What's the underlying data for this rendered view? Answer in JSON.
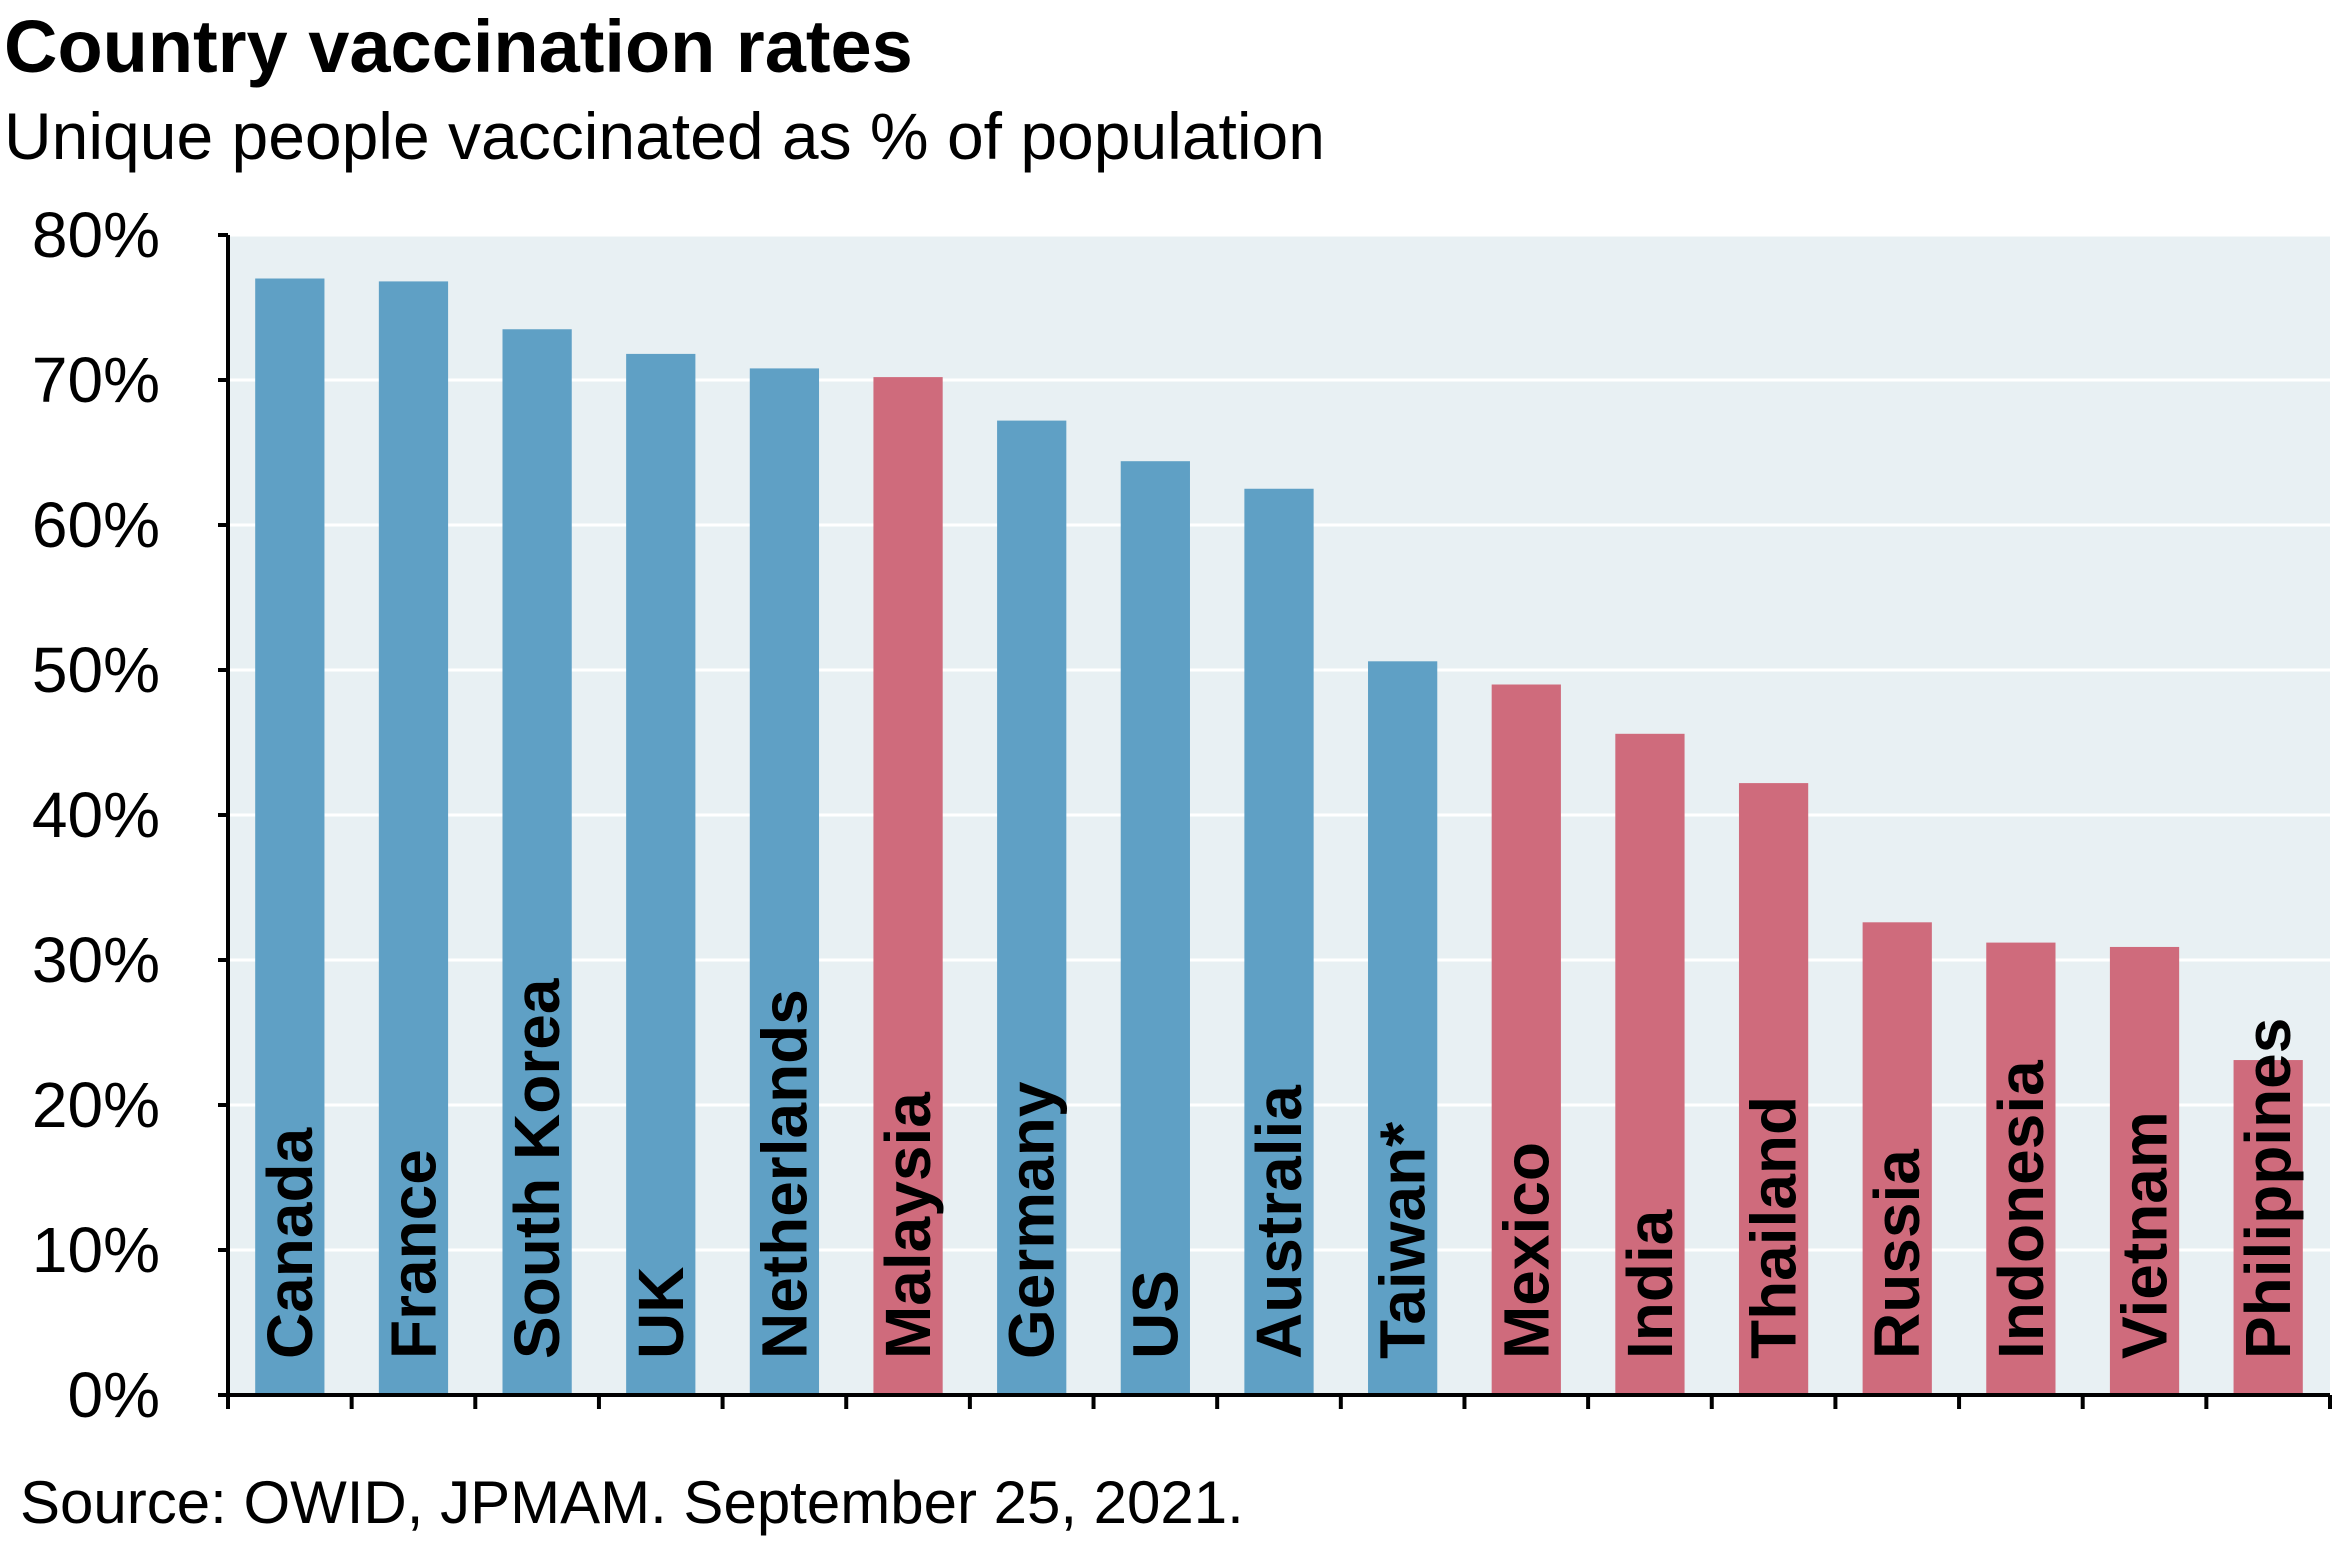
{
  "chart_data": {
    "type": "bar",
    "title": "Country vaccination rates",
    "subtitle": "Unique people vaccinated as % of population",
    "source": "Source: OWID, JPMAM. September 25, 2021.",
    "ylim": [
      0,
      80
    ],
    "ytick_step": 10,
    "ytick_suffix": "%",
    "grid": true,
    "colors": {
      "plot_bg": "#e8f0f3",
      "grid": "#ffffff",
      "developed": "#5fa0c5",
      "emerging": "#cf6b7c",
      "axis": "#000000"
    },
    "categories": [
      "Canada",
      "France",
      "South Korea",
      "UK",
      "Netherlands",
      "Malaysia",
      "Germany",
      "US",
      "Australia",
      "Taiwan*",
      "Mexico",
      "India",
      "Thailand",
      "Russia",
      "Indonesia",
      "Vietnam",
      "Philippines"
    ],
    "values": [
      77.0,
      76.8,
      73.5,
      71.8,
      70.8,
      70.2,
      67.2,
      64.4,
      62.5,
      50.6,
      49.0,
      45.6,
      42.2,
      32.6,
      31.2,
      30.9,
      23.1
    ],
    "groups": [
      "developed",
      "developed",
      "developed",
      "developed",
      "developed",
      "emerging",
      "developed",
      "developed",
      "developed",
      "developed",
      "emerging",
      "emerging",
      "emerging",
      "emerging",
      "emerging",
      "emerging",
      "emerging"
    ]
  }
}
